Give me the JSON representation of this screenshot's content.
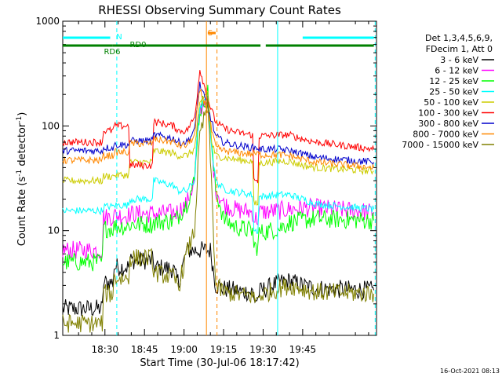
{
  "chart_data": {
    "type": "line",
    "title": "RHESSI Observing Summary Count Rates",
    "xlabel": "Start Time (30-Jul-06 18:17:42)",
    "ylabel_main": "Count Rate (s",
    "ylabel_sup1": "-1",
    "ylabel_mid": " detector",
    "ylabel_sup2": "-1",
    "ylabel_end": ")",
    "y_scale": "log",
    "ylim": [
      1,
      1000
    ],
    "x_range_minutes": [
      1094,
      1213
    ],
    "x_ticks": [
      {
        "minute": 1110,
        "label": "18:30"
      },
      {
        "minute": 1125,
        "label": "18:45"
      },
      {
        "minute": 1140,
        "label": "19:00"
      },
      {
        "minute": 1155,
        "label": "19:15"
      },
      {
        "minute": 1170,
        "label": "19:30"
      },
      {
        "minute": 1185,
        "label": "19:45"
      }
    ],
    "y_ticks": [
      {
        "value": 1,
        "label": "1"
      },
      {
        "value": 10,
        "label": "10"
      },
      {
        "value": 100,
        "label": "100"
      },
      {
        "value": 1000,
        "label": "1000"
      }
    ],
    "legend_header": [
      "Det 1,3,4,5,6,9,",
      "FDecim 1, Att 0"
    ],
    "legend_position": "right",
    "timestamp": "16-Oct-2021 08:13",
    "series": [
      {
        "name": "3 - 6 keV",
        "color": "#000000",
        "x": [
          1094,
          1109,
          1109.5,
          1113,
          1113.5,
          1119,
          1119.5,
          1128,
          1128.5,
          1136,
          1137,
          1138,
          1141,
          1150,
          1152,
          1155,
          1159,
          1162,
          1166,
          1166.5,
          1168,
          1168.5,
          1176,
          1180,
          1185,
          1190,
          1212
        ],
        "y": [
          1.8,
          1.8,
          3.2,
          3.2,
          4.5,
          4.5,
          5.2,
          5.2,
          4.5,
          4.3,
          3.5,
          3.2,
          6.5,
          6.5,
          3.0,
          2.8,
          2.7,
          2.6,
          2.6,
          2.2,
          2.2,
          2.6,
          3.2,
          3.3,
          3.0,
          2.8,
          2.7
        ]
      },
      {
        "name": "6 - 12 keV",
        "color": "#ff00ff",
        "x": [
          1094,
          1109,
          1109.5,
          1113,
          1113.5,
          1119,
          1119.5,
          1128,
          1128.5,
          1136,
          1137,
          1138,
          1141,
          1144,
          1145,
          1146,
          1149,
          1150.5,
          1152,
          1155,
          1159,
          1162,
          1166,
          1166.5,
          1168,
          1168.5,
          1176,
          1180,
          1185,
          1190,
          1212
        ],
        "y": [
          6.5,
          6.5,
          13.5,
          13.5,
          14,
          14,
          14.5,
          14.5,
          14.5,
          14.8,
          15,
          15.5,
          18,
          30,
          80,
          140,
          200,
          60,
          25,
          18,
          16,
          15.5,
          15,
          13,
          13,
          15,
          15.5,
          16,
          16.5,
          16.5,
          15
        ]
      },
      {
        "name": "12 - 25 keV",
        "color": "#00ff00",
        "x": [
          1094,
          1109,
          1109.5,
          1113,
          1113.5,
          1119,
          1119.5,
          1128,
          1128.5,
          1136,
          1137,
          1138,
          1141,
          1144,
          1145,
          1146,
          1149,
          1150.5,
          1152,
          1155,
          1159,
          1162,
          1166,
          1166.5,
          1168,
          1168.5,
          1176,
          1180,
          1185,
          1190,
          1212
        ],
        "y": [
          5,
          5,
          10.5,
          10.5,
          11,
          11,
          11.5,
          11.5,
          12,
          12.5,
          13,
          14,
          18,
          30,
          80,
          140,
          210,
          60,
          25,
          13,
          11,
          10.5,
          10,
          7,
          7,
          9.5,
          10.5,
          12,
          12.5,
          13,
          12.5
        ]
      },
      {
        "name": "25 - 50 keV",
        "color": "#00ffff",
        "x": [
          1094,
          1109,
          1109.5,
          1113,
          1113.5,
          1119,
          1119.5,
          1128,
          1128.5,
          1136,
          1137,
          1138,
          1141,
          1144,
          1145,
          1146,
          1149,
          1150.5,
          1152,
          1155,
          1159,
          1162,
          1166,
          1166.5,
          1168,
          1168.5,
          1176,
          1180,
          1185,
          1190,
          1212
        ],
        "y": [
          15.5,
          15.5,
          17,
          17,
          17.5,
          17.5,
          20,
          20,
          30,
          27,
          25,
          24,
          24,
          30,
          80,
          140,
          200,
          60,
          30,
          25,
          23.5,
          23,
          22,
          10,
          10,
          21,
          22,
          22,
          20,
          18,
          16
        ]
      },
      {
        "name": "50 - 100 keV",
        "color": "#cccc00",
        "x": [
          1094,
          1109,
          1109.5,
          1113,
          1113.5,
          1119,
          1119.5,
          1128,
          1128.5,
          1136,
          1137,
          1138,
          1141,
          1144,
          1145,
          1146,
          1149,
          1150.5,
          1152,
          1155,
          1159,
          1162,
          1166,
          1166.5,
          1168,
          1168.5,
          1176,
          1180,
          1185,
          1190,
          1212
        ],
        "y": [
          30,
          30,
          33,
          33,
          34,
          34,
          45,
          45,
          58,
          55,
          53,
          52,
          52,
          60,
          100,
          160,
          220,
          70,
          52,
          50,
          48,
          47,
          46,
          18,
          18,
          44,
          46,
          46,
          42,
          40,
          37
        ]
      },
      {
        "name": "100 - 300 keV",
        "color": "#ff0000",
        "x": [
          1094,
          1109,
          1109.5,
          1113,
          1113.5,
          1119,
          1119.5,
          1128,
          1128.5,
          1136,
          1137,
          1138,
          1141,
          1144,
          1145,
          1146,
          1149,
          1150.5,
          1152,
          1155,
          1159,
          1162,
          1166,
          1166.5,
          1168,
          1168.5,
          1176,
          1180,
          1185,
          1190,
          1212
        ],
        "y": [
          70,
          70,
          90,
          90,
          100,
          100,
          42,
          42,
          110,
          100,
          95,
          90,
          90,
          120,
          200,
          350,
          180,
          140,
          110,
          95,
          88,
          85,
          82,
          30,
          30,
          80,
          82,
          82,
          75,
          70,
          60
        ]
      },
      {
        "name": "300 - 800 keV",
        "color": "#0000cc",
        "x": [
          1094,
          1109,
          1109.5,
          1113,
          1113.5,
          1119,
          1119.5,
          1128,
          1128.5,
          1136,
          1137,
          1138,
          1141,
          1144,
          1145,
          1146,
          1149,
          1150.5,
          1152,
          1155,
          1159,
          1162,
          1166,
          1166.5,
          1168,
          1168.5,
          1176,
          1180,
          1185,
          1190,
          1212
        ],
        "y": [
          58,
          58,
          62,
          62,
          66,
          66,
          72,
          72,
          82,
          76,
          72,
          70,
          70,
          90,
          160,
          250,
          150,
          110,
          80,
          70,
          66,
          64,
          62,
          62,
          62,
          60,
          60,
          58,
          54,
          50,
          45
        ]
      },
      {
        "name": "800 - 7000 keV",
        "color": "#ff8800",
        "x": [
          1094,
          1109,
          1109.5,
          1113,
          1113.5,
          1119,
          1119.5,
          1128,
          1128.5,
          1136,
          1137,
          1138,
          1141,
          1144,
          1145,
          1146,
          1149,
          1150.5,
          1152,
          1155,
          1159,
          1162,
          1166,
          1166.5,
          1168,
          1168.5,
          1176,
          1180,
          1185,
          1190,
          1212
        ],
        "y": [
          47,
          47,
          52,
          52,
          56,
          56,
          68,
          68,
          75,
          70,
          67,
          65,
          65,
          80,
          140,
          220,
          140,
          90,
          62,
          58,
          56,
          55,
          54,
          54,
          54,
          53,
          53,
          52,
          48,
          45,
          40
        ]
      },
      {
        "name": "7000 - 15000 keV",
        "color": "#808000",
        "x": [
          1094,
          1109,
          1109.5,
          1113,
          1113.5,
          1119,
          1119.5,
          1128,
          1128.5,
          1136,
          1137,
          1138,
          1141,
          1144,
          1145,
          1146,
          1149,
          1150,
          1152,
          1155,
          1159,
          1162,
          1166,
          1166.5,
          1168,
          1168.5,
          1176,
          1180,
          1185,
          1190,
          1212
        ],
        "y": [
          1.3,
          1.3,
          2.5,
          2.5,
          3.5,
          3.5,
          5.5,
          5.5,
          4.0,
          3.6,
          3.2,
          3.0,
          6.0,
          10,
          30,
          80,
          160,
          50,
          3.0,
          2.6,
          2.5,
          2.4,
          2.4,
          2.2,
          2.2,
          2.4,
          2.8,
          3.0,
          2.8,
          2.6,
          2.5
        ]
      }
    ],
    "vertical_lines": [
      {
        "minute": 1114.5,
        "color": "#00ffff",
        "style": "dashed"
      },
      {
        "minute": 1175.5,
        "color": "#00ffff",
        "style": "solid"
      },
      {
        "minute": 1212.5,
        "color": "#00ffff",
        "style": "dashed"
      },
      {
        "minute": 1148.5,
        "color": "#ff8800",
        "style": "solid"
      },
      {
        "minute": 1152.5,
        "color": "#ff8800",
        "style": "dashed"
      }
    ],
    "annotations": [
      {
        "text": "N",
        "color": "#00ffff"
      },
      {
        "text": "RD6",
        "color": "#008000"
      },
      {
        "text": "RD0",
        "color": "#008000"
      },
      {
        "text": "S",
        "color": "#ff8800"
      }
    ],
    "status_bars": [
      {
        "label_index": 0,
        "color": "#00ffff",
        "y": 560,
        "segments": [
          [
            1094,
            1112
          ],
          [
            1185,
            1212
          ]
        ]
      },
      {
        "label_index": 1,
        "color": "#008000",
        "y": 420,
        "segments": [
          [
            1094,
            1113
          ],
          [
            1113,
            1126
          ],
          [
            1126,
            1169
          ],
          [
            1171,
            1212
          ]
        ]
      },
      {
        "label_index": 3,
        "color": "#ff8800",
        "y": 720,
        "segments": [
          [
            1149,
            1152
          ]
        ]
      }
    ]
  }
}
